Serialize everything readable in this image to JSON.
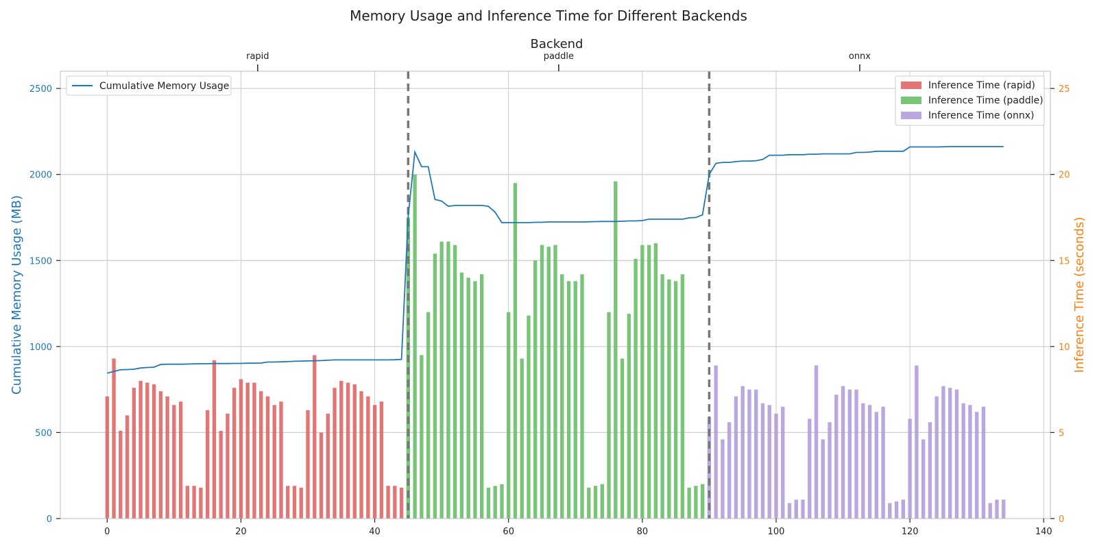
{
  "colors": {
    "memory": "#1f77b4",
    "rapid": "#e06666",
    "paddle": "#6abf69",
    "onnx": "#b39ddb",
    "separator": "#777777",
    "grid": "#cccccc",
    "right_axis": "#ff7f0e"
  },
  "chart_data": {
    "type": "bar",
    "title": "Memory Usage and Inference Time for Different Backends",
    "top_axis": {
      "label": "Backend",
      "ticks": [
        {
          "label": "rapid",
          "x": 22.5
        },
        {
          "label": "paddle",
          "x": 67.5
        },
        {
          "label": "onnx",
          "x": 112.5
        }
      ]
    },
    "xlim": [
      -7,
      141
    ],
    "xticks": [
      0,
      20,
      40,
      60,
      80,
      100,
      120,
      140
    ],
    "xtick_labels": [
      "0",
      "20",
      "40",
      "60",
      "80",
      "100",
      "120",
      "140"
    ],
    "left_axis": {
      "label": "Cumulative Memory Usage (MB)",
      "lim": [
        0,
        2600
      ],
      "ticks": [
        0,
        500,
        1000,
        1500,
        2000,
        2500
      ],
      "tick_labels": [
        "0",
        "500",
        "1000",
        "1500",
        "2000",
        "2500"
      ]
    },
    "right_axis": {
      "label": "Inference Time (seconds)",
      "lim": [
        0,
        26
      ],
      "ticks": [
        0,
        5,
        10,
        15,
        20,
        25
      ],
      "tick_labels": [
        "0",
        "5",
        "10",
        "15",
        "20",
        "25"
      ]
    },
    "separators": [
      45,
      90
    ],
    "grid": true,
    "legend_left": {
      "placement": "upper-left",
      "entries": [
        "Cumulative Memory Usage"
      ]
    },
    "legend_right": {
      "placement": "upper-right",
      "entries": [
        "Inference Time (rapid)",
        "Inference Time (paddle)",
        "Inference Time (onnx)"
      ]
    },
    "series": [
      {
        "name": "Cumulative Memory Usage",
        "kind": "line",
        "axis": "left",
        "x_start": 0,
        "values": [
          845,
          855,
          865,
          866,
          868,
          875,
          878,
          880,
          896,
          897,
          897,
          897,
          898,
          899,
          900,
          900,
          901,
          901,
          901,
          902,
          902,
          903,
          903,
          904,
          910,
          910,
          911,
          912,
          914,
          915,
          916,
          917,
          918,
          920,
          922,
          922,
          922,
          922,
          922,
          922,
          922,
          922,
          922,
          923,
          925,
          1760,
          2130,
          2045,
          2045,
          1855,
          1845,
          1815,
          1820,
          1820,
          1820,
          1820,
          1820,
          1815,
          1780,
          1720,
          1720,
          1720,
          1720,
          1720,
          1722,
          1722,
          1724,
          1724,
          1724,
          1724,
          1724,
          1724,
          1725,
          1726,
          1727,
          1727,
          1727,
          1728,
          1730,
          1730,
          1732,
          1740,
          1740,
          1740,
          1740,
          1740,
          1740,
          1748,
          1750,
          1765,
          2000,
          2065,
          2070,
          2070,
          2075,
          2078,
          2078,
          2080,
          2088,
          2112,
          2112,
          2112,
          2115,
          2115,
          2115,
          2118,
          2118,
          2120,
          2120,
          2120,
          2120,
          2120,
          2128,
          2128,
          2130,
          2135,
          2135,
          2135,
          2135,
          2135,
          2160,
          2160,
          2160,
          2160,
          2160,
          2161,
          2162,
          2162,
          2162,
          2162,
          2162,
          2162,
          2162,
          2162,
          2162
        ]
      },
      {
        "name": "Inference Time (rapid)",
        "kind": "bar",
        "axis": "right",
        "x_start": 0,
        "values": [
          7.1,
          9.3,
          5.1,
          6.0,
          7.6,
          8.0,
          7.9,
          7.8,
          7.4,
          7.1,
          6.6,
          6.8,
          1.9,
          1.9,
          1.8,
          6.3,
          9.2,
          5.1,
          6.1,
          7.6,
          8.1,
          7.9,
          7.9,
          7.4,
          7.1,
          6.6,
          6.8,
          1.9,
          1.9,
          1.8,
          6.3,
          9.5,
          5.0,
          6.1,
          7.6,
          8.0,
          7.9,
          7.8,
          7.4,
          7.1,
          6.6,
          6.8,
          1.9,
          1.9,
          1.8
        ]
      },
      {
        "name": "Inference Time (paddle)",
        "kind": "bar",
        "axis": "right",
        "x_start": 45,
        "values": [
          17.5,
          20.0,
          9.5,
          12.0,
          15.4,
          16.1,
          16.1,
          15.9,
          14.3,
          14.0,
          13.8,
          14.2,
          1.8,
          1.9,
          2.0,
          12.0,
          19.5,
          9.3,
          11.8,
          15.0,
          15.9,
          15.8,
          15.9,
          14.2,
          13.8,
          13.8,
          14.2,
          1.8,
          1.9,
          2.0,
          12.0,
          19.6,
          9.3,
          11.9,
          15.1,
          15.9,
          15.9,
          16.0,
          14.2,
          13.9,
          13.8,
          14.2,
          1.8,
          1.9,
          2.0
        ]
      },
      {
        "name": "Inference Time (onnx)",
        "kind": "bar",
        "axis": "right",
        "x_start": 90,
        "values": [
          5.9,
          8.9,
          4.6,
          5.6,
          7.1,
          7.7,
          7.5,
          7.5,
          6.7,
          6.6,
          6.1,
          6.5,
          0.9,
          1.1,
          1.1,
          5.8,
          8.9,
          4.6,
          5.6,
          7.2,
          7.7,
          7.5,
          7.5,
          6.7,
          6.6,
          6.2,
          6.5,
          0.9,
          1.0,
          1.1,
          5.8,
          8.9,
          4.6,
          5.6,
          7.1,
          7.7,
          7.6,
          7.5,
          6.7,
          6.6,
          6.2,
          6.5,
          0.9,
          1.1,
          1.1
        ]
      }
    ]
  }
}
